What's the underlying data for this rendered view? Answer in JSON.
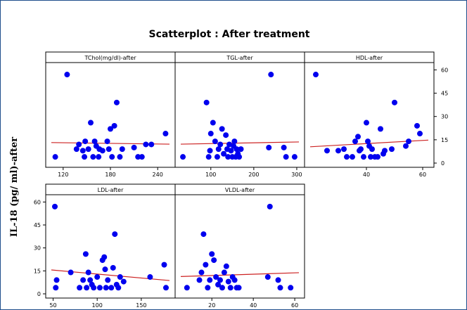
{
  "chart_data": {
    "type": "scatter",
    "title": "Scatterplot : After treatment",
    "ylabel": "IL-18 (pg/ ml)-after",
    "ylim": [
      0,
      62
    ],
    "y_ticks": [
      0,
      15,
      30,
      45,
      60
    ],
    "grid": false,
    "marker_color": "#0000ee",
    "fit_line_color": "#cc2222",
    "panels": [
      {
        "label": "TChol(mg/dl)-after",
        "xlim": [
          105,
          255
        ],
        "x_ticks": [
          120,
          180,
          240
        ],
        "points": [
          {
            "x": 110,
            "y": 4
          },
          {
            "x": 125,
            "y": 57
          },
          {
            "x": 137,
            "y": 9
          },
          {
            "x": 140,
            "y": 12
          },
          {
            "x": 145,
            "y": 8
          },
          {
            "x": 147,
            "y": 4
          },
          {
            "x": 148,
            "y": 14
          },
          {
            "x": 152,
            "y": 9
          },
          {
            "x": 155,
            "y": 26
          },
          {
            "x": 158,
            "y": 4
          },
          {
            "x": 160,
            "y": 14
          },
          {
            "x": 162,
            "y": 11
          },
          {
            "x": 165,
            "y": 4
          },
          {
            "x": 166,
            "y": 9
          },
          {
            "x": 170,
            "y": 8
          },
          {
            "x": 176,
            "y": 14
          },
          {
            "x": 178,
            "y": 9
          },
          {
            "x": 180,
            "y": 22
          },
          {
            "x": 182,
            "y": 4
          },
          {
            "x": 185,
            "y": 24
          },
          {
            "x": 188,
            "y": 39
          },
          {
            "x": 192,
            "y": 4
          },
          {
            "x": 195,
            "y": 9
          },
          {
            "x": 210,
            "y": 10
          },
          {
            "x": 215,
            "y": 4
          },
          {
            "x": 220,
            "y": 4
          },
          {
            "x": 225,
            "y": 12
          },
          {
            "x": 232,
            "y": 12
          },
          {
            "x": 250,
            "y": 19
          }
        ],
        "fit": [
          [
            105,
            13.2
          ],
          [
            255,
            12.2
          ]
        ]
      },
      {
        "label": "TGL-after",
        "xlim": [
          30,
          305
        ],
        "x_ticks": [
          100,
          200,
          300
        ],
        "points": [
          {
            "x": 35,
            "y": 4
          },
          {
            "x": 90,
            "y": 39
          },
          {
            "x": 95,
            "y": 4
          },
          {
            "x": 98,
            "y": 8
          },
          {
            "x": 100,
            "y": 19
          },
          {
            "x": 105,
            "y": 26
          },
          {
            "x": 110,
            "y": 14
          },
          {
            "x": 115,
            "y": 4
          },
          {
            "x": 118,
            "y": 9
          },
          {
            "x": 122,
            "y": 12
          },
          {
            "x": 126,
            "y": 22
          },
          {
            "x": 130,
            "y": 6
          },
          {
            "x": 135,
            "y": 18
          },
          {
            "x": 138,
            "y": 9
          },
          {
            "x": 140,
            "y": 4
          },
          {
            "x": 143,
            "y": 12
          },
          {
            "x": 147,
            "y": 8
          },
          {
            "x": 150,
            "y": 4
          },
          {
            "x": 153,
            "y": 11
          },
          {
            "x": 155,
            "y": 14
          },
          {
            "x": 158,
            "y": 4
          },
          {
            "x": 160,
            "y": 9
          },
          {
            "x": 163,
            "y": 6
          },
          {
            "x": 166,
            "y": 4
          },
          {
            "x": 170,
            "y": 9
          },
          {
            "x": 235,
            "y": 10
          },
          {
            "x": 240,
            "y": 57
          },
          {
            "x": 270,
            "y": 10
          },
          {
            "x": 275,
            "y": 4
          },
          {
            "x": 295,
            "y": 4
          }
        ],
        "fit": [
          [
            30,
            12.2
          ],
          [
            305,
            13.6
          ]
        ]
      },
      {
        "label": "HDL-after",
        "xlim": [
          20,
          62
        ],
        "x_ticks": [
          40,
          60
        ],
        "points": [
          {
            "x": 22,
            "y": 57
          },
          {
            "x": 26,
            "y": 8
          },
          {
            "x": 30,
            "y": 8
          },
          {
            "x": 32,
            "y": 9
          },
          {
            "x": 33,
            "y": 4
          },
          {
            "x": 35,
            "y": 4
          },
          {
            "x": 36,
            "y": 14
          },
          {
            "x": 37,
            "y": 17
          },
          {
            "x": 37.5,
            "y": 8
          },
          {
            "x": 38,
            "y": 9
          },
          {
            "x": 39,
            "y": 4
          },
          {
            "x": 40,
            "y": 26
          },
          {
            "x": 40.5,
            "y": 14
          },
          {
            "x": 41,
            "y": 11
          },
          {
            "x": 41.5,
            "y": 4
          },
          {
            "x": 42,
            "y": 9
          },
          {
            "x": 43,
            "y": 4
          },
          {
            "x": 44,
            "y": 4
          },
          {
            "x": 45,
            "y": 22
          },
          {
            "x": 46,
            "y": 6
          },
          {
            "x": 46.5,
            "y": 8
          },
          {
            "x": 49,
            "y": 9
          },
          {
            "x": 50,
            "y": 39
          },
          {
            "x": 54,
            "y": 11
          },
          {
            "x": 55,
            "y": 14
          },
          {
            "x": 58,
            "y": 24
          },
          {
            "x": 59,
            "y": 19
          }
        ],
        "fit": [
          [
            20,
            10.5
          ],
          [
            62,
            14.8
          ]
        ]
      },
      {
        "label": "LDL-after",
        "xlim": [
          48,
          182
        ],
        "x_ticks": [
          50,
          100,
          150
        ],
        "points": [
          {
            "x": 52,
            "y": 57
          },
          {
            "x": 53,
            "y": 4
          },
          {
            "x": 54,
            "y": 9
          },
          {
            "x": 70,
            "y": 14
          },
          {
            "x": 80,
            "y": 4
          },
          {
            "x": 84,
            "y": 9
          },
          {
            "x": 87,
            "y": 26
          },
          {
            "x": 88,
            "y": 4
          },
          {
            "x": 90,
            "y": 14
          },
          {
            "x": 92,
            "y": 9
          },
          {
            "x": 94,
            "y": 6
          },
          {
            "x": 96,
            "y": 4
          },
          {
            "x": 100,
            "y": 11
          },
          {
            "x": 103,
            "y": 4
          },
          {
            "x": 106,
            "y": 22
          },
          {
            "x": 108,
            "y": 24
          },
          {
            "x": 109,
            "y": 16
          },
          {
            "x": 110,
            "y": 4
          },
          {
            "x": 112,
            "y": 9
          },
          {
            "x": 116,
            "y": 4
          },
          {
            "x": 118,
            "y": 17
          },
          {
            "x": 120,
            "y": 39
          },
          {
            "x": 122,
            "y": 6
          },
          {
            "x": 124,
            "y": 4
          },
          {
            "x": 126,
            "y": 11
          },
          {
            "x": 130,
            "y": 8
          },
          {
            "x": 160,
            "y": 11
          },
          {
            "x": 176,
            "y": 19
          },
          {
            "x": 178,
            "y": 4
          }
        ],
        "fit": [
          [
            48,
            15.6
          ],
          [
            182,
            8.7
          ]
        ]
      },
      {
        "label": "VLDL-after",
        "xlim": [
          5,
          62
        ],
        "x_ticks": [
          20,
          40,
          60
        ],
        "points": [
          {
            "x": 8,
            "y": 4
          },
          {
            "x": 14,
            "y": 9
          },
          {
            "x": 15,
            "y": 14
          },
          {
            "x": 16,
            "y": 39
          },
          {
            "x": 17,
            "y": 19
          },
          {
            "x": 18,
            "y": 4
          },
          {
            "x": 19,
            "y": 9
          },
          {
            "x": 20,
            "y": 26
          },
          {
            "x": 21,
            "y": 22
          },
          {
            "x": 22,
            "y": 11
          },
          {
            "x": 23,
            "y": 6
          },
          {
            "x": 24,
            "y": 9
          },
          {
            "x": 25,
            "y": 4
          },
          {
            "x": 26,
            "y": 14
          },
          {
            "x": 27,
            "y": 18
          },
          {
            "x": 28,
            "y": 8
          },
          {
            "x": 29,
            "y": 4
          },
          {
            "x": 30,
            "y": 11
          },
          {
            "x": 31,
            "y": 9
          },
          {
            "x": 32,
            "y": 4
          },
          {
            "x": 33,
            "y": 4
          },
          {
            "x": 47,
            "y": 11
          },
          {
            "x": 48,
            "y": 57
          },
          {
            "x": 52,
            "y": 9
          },
          {
            "x": 53,
            "y": 4
          },
          {
            "x": 58,
            "y": 4
          }
        ],
        "fit": [
          [
            5,
            11.3
          ],
          [
            62,
            13.8
          ]
        ]
      }
    ]
  }
}
